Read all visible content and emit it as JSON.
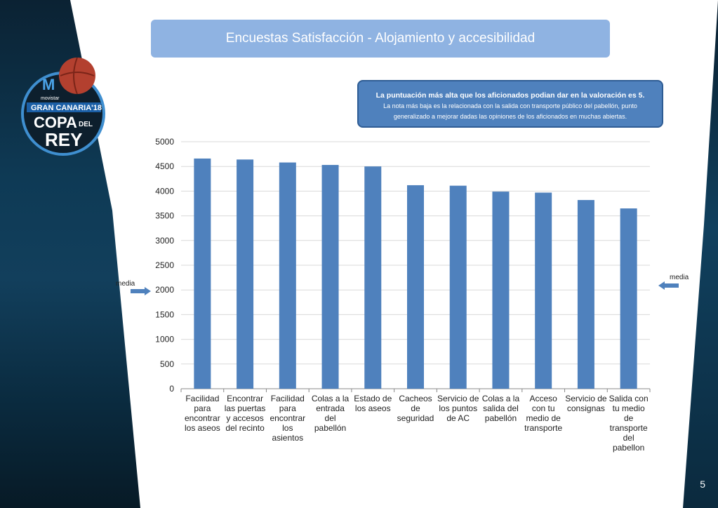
{
  "slide": {
    "title": "Encuestas Satisfacción - Alojamiento y accesibilidad",
    "page_number": "5"
  },
  "note": {
    "bold_text": "La puntuación más alta que los aficionados podian dar en la valoración es 5",
    "text": "La nota más baja es la relacionada con la salida con transporte público del pabellón, punto generalizado a mejorar dadas las opiniones de los aficionados en muchas abiertas."
  },
  "media_labels": {
    "left": "media",
    "right": "media"
  },
  "logo": {
    "brand": "movistar",
    "event_line1": "GRAN CANARIA'18",
    "event_line2": "COPA",
    "event_line3": "DEL",
    "event_line4": "REY"
  },
  "colors": {
    "bar": "#4f81bd",
    "title_bg": "#8fb3e2",
    "note_bg": "#4f81bd",
    "arrow": "#4f81bd"
  },
  "chart_data": {
    "type": "bar",
    "categories": [
      "Facilidad para encontrar los aseos",
      "Encontrar las puertas y accesos del recinto",
      "Facilidad para encontrar los asientos",
      "Colas a la entrada del pabellón",
      "Estado de los aseos",
      "Cacheos de seguridad",
      "Servicio de los puntos de AC",
      "Colas a la salida del pabellón",
      "Acceso con tu medio de transporte",
      "Servicio de consignas",
      "Salida con tu medio de transporte del pabellon"
    ],
    "category_lines": [
      [
        "Facilidad",
        "para",
        "encontrar",
        "los aseos"
      ],
      [
        "Encontrar",
        "las puertas",
        "y accesos",
        "del recinto"
      ],
      [
        "Facilidad",
        "para",
        "encontrar",
        "los",
        "asientos"
      ],
      [
        "Colas a la",
        "entrada",
        "del",
        "pabellón"
      ],
      [
        "Estado de",
        "los aseos"
      ],
      [
        "Cacheos",
        "de",
        "seguridad"
      ],
      [
        "Servicio de",
        "los puntos",
        "de AC"
      ],
      [
        "Colas a la",
        "salida del",
        "pabellón"
      ],
      [
        "Acceso",
        "con tu",
        "medio de",
        "transporte"
      ],
      [
        "Servicio de",
        "consignas"
      ],
      [
        "Salida con",
        "tu medio",
        "de",
        "transporte",
        "del",
        "pabellon"
      ]
    ],
    "values": [
      4660,
      4640,
      4580,
      4530,
      4500,
      4120,
      4110,
      3990,
      3970,
      3820,
      3650
    ],
    "ylim": [
      0,
      5000
    ],
    "yticks": [
      0,
      500,
      1000,
      1500,
      2000,
      2500,
      3000,
      3500,
      4000,
      4500,
      5000
    ],
    "grid": true
  }
}
